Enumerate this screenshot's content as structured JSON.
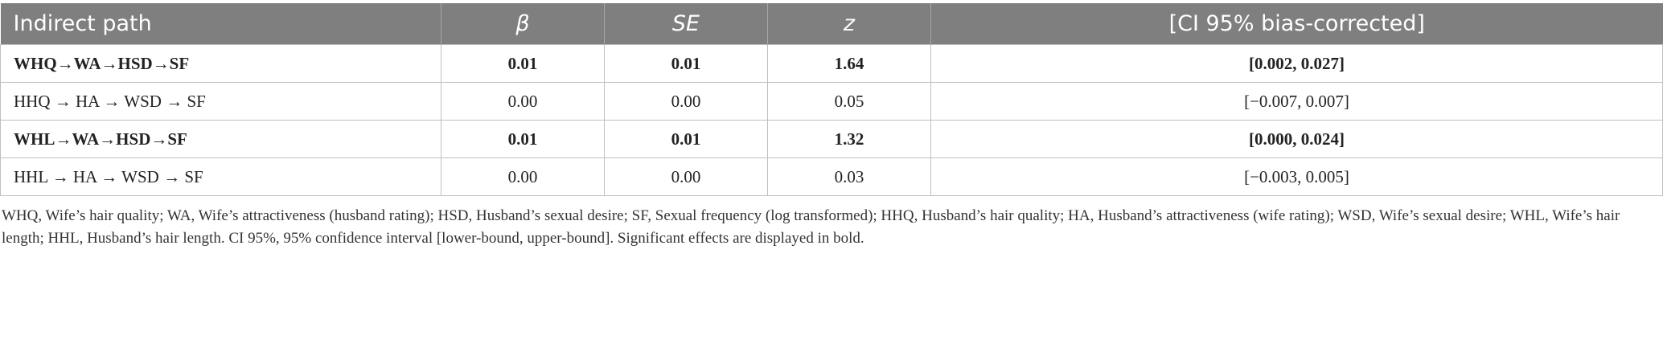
{
  "table": {
    "header": [
      "Indirect path",
      "β",
      "SE",
      "z",
      "[CI 95% bias-corrected]"
    ],
    "header_italic": [
      false,
      true,
      true,
      true,
      false
    ],
    "rows": [
      {
        "cells": [
          "WHQ→WA→HSD→SF",
          "0.01",
          "0.01",
          "1.64",
          "[0.002, 0.027]"
        ],
        "bold": true
      },
      {
        "cells": [
          "HHQ → HA → WSD → SF",
          "0.00",
          "0.00",
          "0.05",
          "[−0.007, 0.007]"
        ],
        "bold": false
      },
      {
        "cells": [
          "WHL→WA→HSD→SF",
          "0.01",
          "0.01",
          "1.32",
          "[0.000, 0.024]"
        ],
        "bold": true
      },
      {
        "cells": [
          "HHL → HA → WSD → SF",
          "0.00",
          "0.00",
          "0.03",
          "[−0.003, 0.005]"
        ],
        "bold": false
      }
    ]
  },
  "note": "WHQ, Wife’s hair quality; WA, Wife’s attractiveness (husband rating); HSD, Husband’s sexual desire; SF, Sexual frequency (log transformed); HHQ, Husband’s hair quality; HA, Husband’s attractiveness (wife rating); WSD, Wife’s sexual desire; WHL, Wife’s hair length; HHL, Husband’s hair length. CI 95%, 95% confidence interval [lower-bound, upper-bound]. Significant effects are displayed in bold."
}
